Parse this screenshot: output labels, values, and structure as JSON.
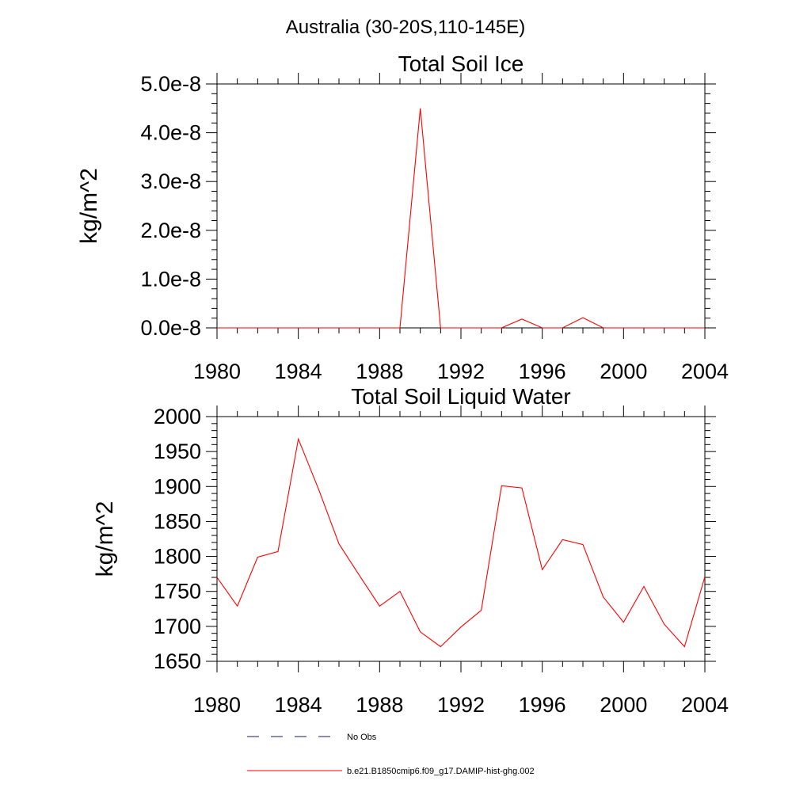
{
  "figure": {
    "suptitle": "Australia (30-20S,110-145E)"
  },
  "chart_data": [
    {
      "type": "line",
      "title": "Total Soil Ice",
      "xlabel": "",
      "ylabel": "kg/m^2",
      "xlim": [
        1980,
        2004
      ],
      "ylim": [
        0,
        5e-08
      ],
      "x_ticks": [
        1980,
        1984,
        1988,
        1992,
        1996,
        2000,
        2004
      ],
      "x_tick_labels": [
        "1980",
        "1984",
        "1988",
        "1992",
        "1996",
        "2000",
        "2004"
      ],
      "y_ticks": [
        0,
        1e-08,
        2e-08,
        3e-08,
        4e-08,
        5e-08
      ],
      "y_tick_labels": [
        "0.0e-8",
        "1.0e-8",
        "2.0e-8",
        "3.0e-8",
        "4.0e-8",
        "5.0e-8"
      ],
      "series": [
        {
          "name": "b.e21.B1850cmip6.f09_g17.DAMIP-hist-ghg.002",
          "color": "#ff0000",
          "x": [
            1980,
            1981,
            1982,
            1983,
            1984,
            1985,
            1986,
            1987,
            1988,
            1989,
            1990,
            1991,
            1992,
            1993,
            1994,
            1995,
            1996,
            1997,
            1998,
            1999,
            2000,
            2001,
            2002,
            2003,
            2004
          ],
          "values": [
            0,
            0,
            0,
            0,
            0,
            0,
            0,
            0,
            0,
            0,
            4.5e-08,
            0,
            0,
            0,
            0,
            1.8e-09,
            0,
            0,
            2.1e-09,
            0,
            0,
            0,
            0,
            0,
            0
          ]
        }
      ]
    },
    {
      "type": "line",
      "title": "Total Soil Liquid Water",
      "xlabel": "",
      "ylabel": "kg/m^2",
      "xlim": [
        1980,
        2004
      ],
      "ylim": [
        1650,
        2000
      ],
      "x_ticks": [
        1980,
        1984,
        1988,
        1992,
        1996,
        2000,
        2004
      ],
      "x_tick_labels": [
        "1980",
        "1984",
        "1988",
        "1992",
        "1996",
        "2000",
        "2004"
      ],
      "y_ticks": [
        1650,
        1700,
        1750,
        1800,
        1850,
        1900,
        1950,
        2000
      ],
      "y_tick_labels": [
        "1650",
        "1700",
        "1750",
        "1800",
        "1850",
        "1900",
        "1950",
        "2000"
      ],
      "series": [
        {
          "name": "b.e21.B1850cmip6.f09_g17.DAMIP-hist-ghg.002",
          "color": "#ff0000",
          "x": [
            1980,
            1981,
            1982,
            1983,
            1984,
            1985,
            1986,
            1987,
            1988,
            1989,
            1990,
            1991,
            1992,
            1993,
            1994,
            1995,
            1996,
            1997,
            1998,
            1999,
            2000,
            2001,
            2002,
            2003,
            2004
          ],
          "values": [
            1770,
            1729,
            1799,
            1807,
            1968,
            1896,
            1818,
            1773,
            1729,
            1750,
            1692,
            1671,
            1699,
            1723,
            1901,
            1898,
            1781,
            1824,
            1817,
            1742,
            1706,
            1757,
            1703,
            1671,
            1771
          ]
        }
      ]
    }
  ],
  "legend": {
    "items": [
      {
        "label": "No Obs",
        "style": "dashed",
        "color": "#1a1a66"
      },
      {
        "label": "b.e21.B1850cmip6.f09_g17.DAMIP-hist-ghg.002",
        "style": "solid",
        "color": "#ff0000"
      }
    ]
  }
}
